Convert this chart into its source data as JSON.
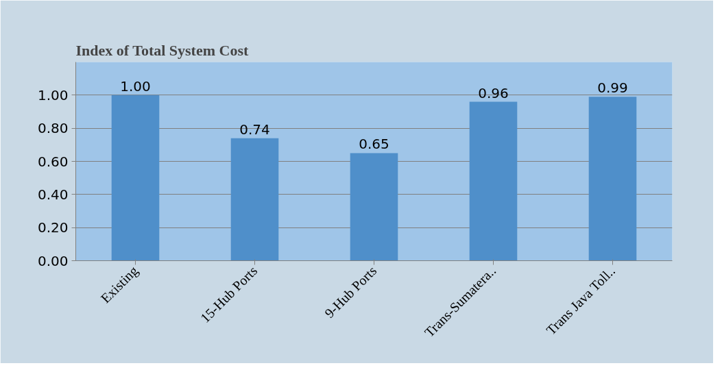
{
  "chart_data": {
    "type": "bar",
    "title": "Index of Total System Cost",
    "categories": [
      "Existing",
      "15-Hub Ports",
      "9-Hub Ports",
      "Trans-Sumatera..",
      "Trans Java Toll.."
    ],
    "values": [
      1.0,
      0.74,
      0.65,
      0.96,
      0.99
    ],
    "value_labels": [
      "1.00",
      "0.74",
      "0.65",
      "0.96",
      "0.99"
    ],
    "color": "#4f8fca",
    "ylim": [
      0,
      1.2
    ],
    "yticks": [
      {
        "value": 0,
        "label": "0.00"
      },
      {
        "value": 0.2,
        "label": "0.20"
      },
      {
        "value": 0.4,
        "label": "0.40"
      },
      {
        "value": 0.6,
        "label": "0.60"
      },
      {
        "value": 0.8,
        "label": "0.80"
      },
      {
        "value": 1.0,
        "label": "1.00"
      }
    ],
    "grid": "y"
  }
}
